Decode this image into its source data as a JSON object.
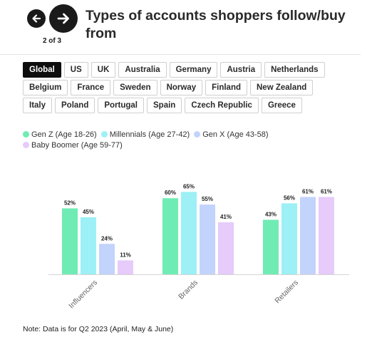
{
  "header": {
    "title": "Types of accounts shoppers follow/buy from",
    "page_count": "2 of 3",
    "prev_icon": "arrow-left-icon",
    "next_icon": "arrow-right-icon"
  },
  "tabs": [
    [
      "Global",
      "US",
      "UK",
      "Australia",
      "Germany",
      "Austria",
      "Netherlands"
    ],
    [
      "Belgium",
      "France",
      "Sweden",
      "Norway",
      "Finland",
      "New Zealand"
    ],
    [
      "Italy",
      "Poland",
      "Portugal",
      "Spain",
      "Czech Republic",
      "Greece"
    ]
  ],
  "active_tab": "Global",
  "legend": [
    {
      "label": "Gen Z (Age 18-26)",
      "color": "#6FEBB4"
    },
    {
      "label": "Millennials (Age 27-42)",
      "color": "#9CF0F6"
    },
    {
      "label": "Gen X (Age 43-58)",
      "color": "#C2D3FC"
    },
    {
      "label": "Baby Boomer (Age 59-77)",
      "color": "#E6CBFB"
    }
  ],
  "chart_data": {
    "type": "bar",
    "categories": [
      "Influencers",
      "Brands",
      "Retailers"
    ],
    "series": [
      {
        "name": "Gen Z (Age 18-26)",
        "color": "#6FEBB4",
        "values": [
          52,
          60,
          43
        ]
      },
      {
        "name": "Millennials (Age 27-42)",
        "color": "#9CF0F6",
        "values": [
          45,
          65,
          56
        ]
      },
      {
        "name": "Gen X (Age 43-58)",
        "color": "#C2D3FC",
        "values": [
          24,
          55,
          61
        ]
      },
      {
        "name": "Baby Boomer (Age 59-77)",
        "color": "#E6CBFB",
        "values": [
          11,
          41,
          61
        ]
      }
    ],
    "value_suffix": "%",
    "ylim": [
      0,
      70
    ],
    "grid": false
  },
  "note": "Note: Data is for Q2 2023 (April, May & June)"
}
